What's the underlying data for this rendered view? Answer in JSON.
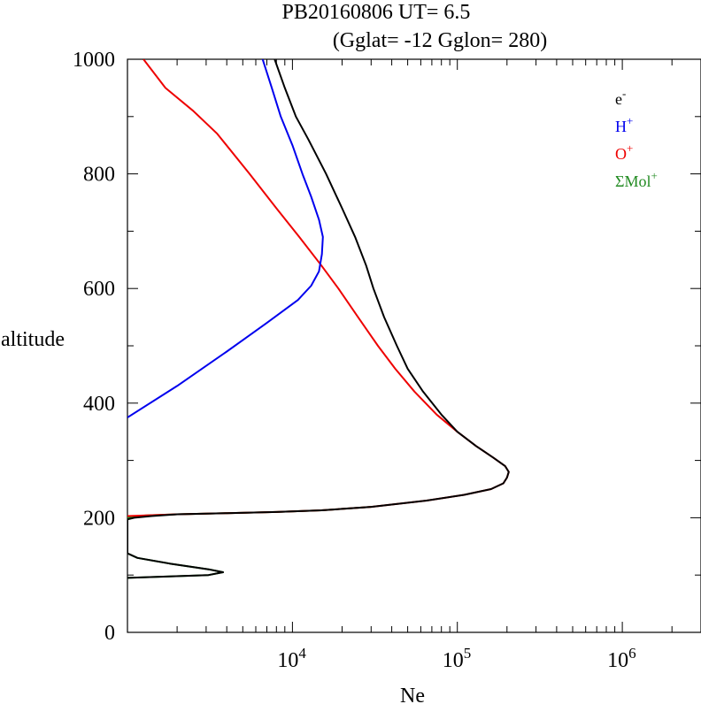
{
  "chart_data": {
    "type": "line",
    "title_line1": "PB20160806   UT=  6.5",
    "title_line2": "(Gglat= -12   Gglon=  280)",
    "xlabel": "Ne",
    "ylabel": "altitude",
    "x_scale": "log",
    "xlim": [
      1000,
      3000000
    ],
    "ylim": [
      0,
      1000
    ],
    "x_tick_labels": [
      {
        "value": 10000,
        "base": "10",
        "exp": "4"
      },
      {
        "value": 100000,
        "base": "10",
        "exp": "5"
      },
      {
        "value": 1000000,
        "base": "10",
        "exp": "6"
      }
    ],
    "y_tick_labels": [
      {
        "value": 0,
        "label": "0"
      },
      {
        "value": 200,
        "label": "200"
      },
      {
        "value": 400,
        "label": "400"
      },
      {
        "value": 600,
        "label": "600"
      },
      {
        "value": 800,
        "label": "800"
      },
      {
        "value": 1000,
        "label": "1000"
      }
    ],
    "legend": [
      {
        "base": "e",
        "sup": "-",
        "color": "#000000"
      },
      {
        "base": "H",
        "sup": "+",
        "color": "#0000ee"
      },
      {
        "base": "O",
        "sup": "+",
        "color": "#ee0000"
      },
      {
        "base": "ΣMol",
        "sup": "+",
        "color": "#228b22"
      }
    ],
    "series": [
      {
        "name": "ΣMol+",
        "color": "#228b22",
        "points": [
          [
            1000,
            95
          ],
          [
            3100,
            100
          ],
          [
            3800,
            105
          ],
          [
            3100,
            110
          ],
          [
            1800,
            120
          ],
          [
            1150,
            130
          ],
          [
            1000,
            138
          ],
          [
            1000,
            200
          ],
          [
            1100,
            202
          ],
          [
            1300,
            204
          ],
          [
            2000,
            206
          ],
          [
            4000,
            208
          ],
          [
            8000,
            210
          ],
          [
            15000,
            213
          ],
          [
            30000,
            219
          ]
        ]
      },
      {
        "name": "O+",
        "color": "#ee0000",
        "points": [
          [
            1000,
            203
          ],
          [
            2000,
            206
          ],
          [
            4000,
            208
          ],
          [
            8000,
            210
          ],
          [
            15000,
            213
          ],
          [
            30000,
            219
          ],
          [
            65000,
            230
          ],
          [
            110000,
            240
          ],
          [
            160000,
            250
          ],
          [
            190000,
            260
          ],
          [
            200000,
            270
          ],
          [
            205000,
            280
          ],
          [
            195000,
            290
          ],
          [
            165000,
            305
          ],
          [
            130000,
            325
          ],
          [
            100000,
            350
          ],
          [
            75000,
            380
          ],
          [
            55000,
            420
          ],
          [
            42000,
            460
          ],
          [
            33000,
            500
          ],
          [
            25000,
            550
          ],
          [
            19000,
            600
          ],
          [
            15000,
            640
          ],
          [
            11000,
            690
          ],
          [
            8000,
            740
          ],
          [
            5500,
            800
          ],
          [
            3500,
            870
          ],
          [
            2500,
            910
          ],
          [
            1700,
            950
          ],
          [
            1250,
            1000
          ]
        ]
      },
      {
        "name": "H+",
        "color": "#0000ee",
        "points": [
          [
            1000,
            375
          ],
          [
            2000,
            430
          ],
          [
            4000,
            490
          ],
          [
            7000,
            540
          ],
          [
            10800,
            580
          ],
          [
            13000,
            605
          ],
          [
            14500,
            630
          ],
          [
            15100,
            660
          ],
          [
            15300,
            690
          ],
          [
            14500,
            720
          ],
          [
            13000,
            760
          ],
          [
            11500,
            800
          ],
          [
            10000,
            850
          ],
          [
            8500,
            900
          ],
          [
            7500,
            950
          ],
          [
            6600,
            1000
          ]
        ]
      },
      {
        "name": "e-",
        "color": "#000000",
        "points": [
          [
            1000,
            95
          ],
          [
            3100,
            100
          ],
          [
            3800,
            105
          ],
          [
            3100,
            110
          ],
          [
            1800,
            120
          ],
          [
            1150,
            130
          ],
          [
            1000,
            138
          ],
          [
            1000,
            197
          ],
          [
            1100,
            200
          ],
          [
            1400,
            203
          ],
          [
            2000,
            206
          ],
          [
            4000,
            208
          ],
          [
            8000,
            210
          ],
          [
            15000,
            213
          ],
          [
            30000,
            219
          ],
          [
            65000,
            230
          ],
          [
            110000,
            240
          ],
          [
            160000,
            250
          ],
          [
            190000,
            260
          ],
          [
            200000,
            270
          ],
          [
            205000,
            280
          ],
          [
            195000,
            290
          ],
          [
            165000,
            305
          ],
          [
            130000,
            325
          ],
          [
            100000,
            350
          ],
          [
            80000,
            380
          ],
          [
            62000,
            420
          ],
          [
            50000,
            460
          ],
          [
            43000,
            500
          ],
          [
            36000,
            550
          ],
          [
            31000,
            600
          ],
          [
            28000,
            640
          ],
          [
            24000,
            690
          ],
          [
            20000,
            740
          ],
          [
            16000,
            800
          ],
          [
            12500,
            860
          ],
          [
            10500,
            900
          ],
          [
            9000,
            950
          ],
          [
            7800,
            1000
          ]
        ]
      }
    ]
  }
}
